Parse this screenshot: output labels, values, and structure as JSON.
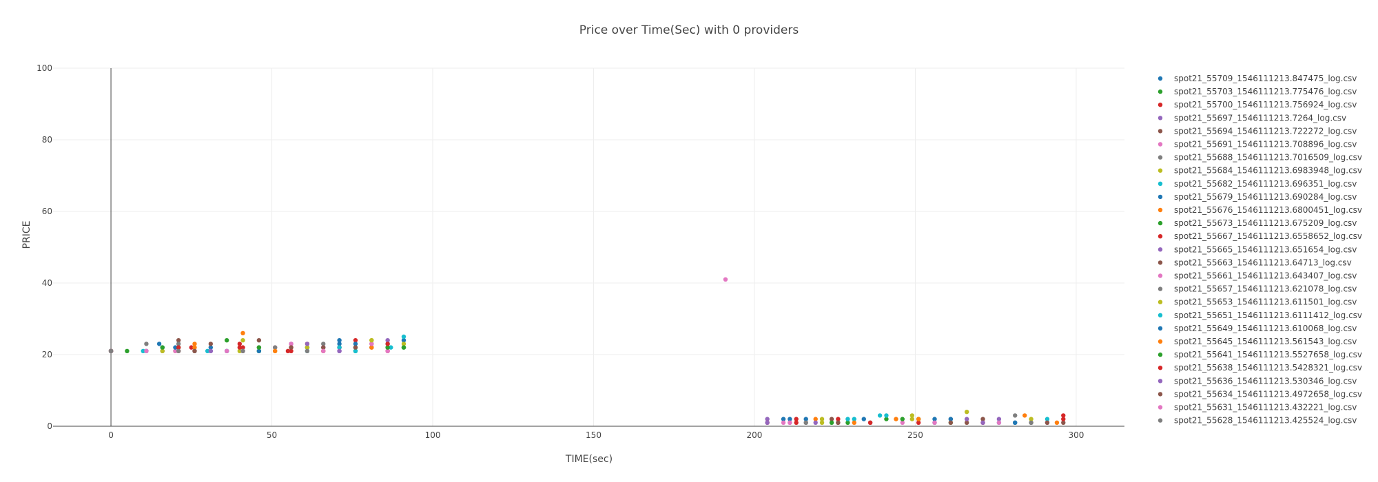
{
  "chart_data": {
    "type": "scatter",
    "title": "Price over Time(Sec) with 0 providers",
    "xlabel": "TIME(sec)",
    "ylabel": "PRICE",
    "xlim": [
      -18,
      315
    ],
    "ylim": [
      0,
      100
    ],
    "xticks": [
      0,
      50,
      100,
      150,
      200,
      250,
      300
    ],
    "yticks": [
      0,
      20,
      40,
      60,
      80,
      100
    ],
    "grid": true,
    "legend_position": "right",
    "series": [
      {
        "name": "spot21_55709_1546111213.847475_log.csv",
        "color": "#1f77b4",
        "points": [
          [
            0,
            21
          ],
          [
            15,
            23
          ],
          [
            36,
            21
          ],
          [
            71,
            24
          ],
          [
            86,
            22
          ],
          [
            91,
            24
          ],
          [
            211,
            2
          ],
          [
            256,
            2
          ],
          [
            281,
            1
          ]
        ]
      },
      {
        "name": "spot21_55703_1546111213.775476_log.csv",
        "color": "#2ca02c",
        "points": [
          [
            0,
            21
          ],
          [
            5,
            21
          ],
          [
            36,
            24
          ],
          [
            46,
            21
          ],
          [
            61,
            22
          ],
          [
            76,
            21
          ],
          [
            91,
            22
          ],
          [
            241,
            2
          ],
          [
            261,
            1
          ]
        ]
      },
      {
        "name": "spot21_55700_1546111213.756924_log.csv",
        "color": "#d62728",
        "points": [
          [
            0,
            21
          ],
          [
            21,
            21
          ],
          [
            41,
            22
          ],
          [
            56,
            21
          ],
          [
            76,
            24
          ],
          [
            86,
            21
          ],
          [
            213,
            2
          ],
          [
            251,
            1
          ],
          [
            296,
            3
          ]
        ]
      },
      {
        "name": "spot21_55697_1546111213.7264_log.csv",
        "color": "#9467bd",
        "points": [
          [
            0,
            21
          ],
          [
            11,
            21
          ],
          [
            31,
            21
          ],
          [
            56,
            23
          ],
          [
            71,
            21
          ],
          [
            86,
            24
          ],
          [
            204,
            2
          ],
          [
            276,
            2
          ]
        ]
      },
      {
        "name": "spot21_55694_1546111213.722272_log.csv",
        "color": "#8c564b",
        "points": [
          [
            0,
            21
          ],
          [
            21,
            24
          ],
          [
            46,
            24
          ],
          [
            61,
            22
          ],
          [
            81,
            22
          ],
          [
            226,
            1
          ],
          [
            266,
            1
          ]
        ]
      },
      {
        "name": "spot21_55691_1546111213.708896_log.csv",
        "color": "#e377c2",
        "points": [
          [
            0,
            21
          ],
          [
            25,
            22
          ],
          [
            51,
            22
          ],
          [
            66,
            21
          ],
          [
            86,
            21
          ],
          [
            191,
            41
          ],
          [
            211,
            1
          ],
          [
            246,
            1
          ]
        ]
      },
      {
        "name": "spot21_55688_1546111213.7016509_log.csv",
        "color": "#7f7f7f",
        "points": [
          [
            0,
            21
          ],
          [
            11,
            23
          ],
          [
            26,
            21
          ],
          [
            41,
            21
          ],
          [
            66,
            23
          ],
          [
            216,
            1
          ],
          [
            261,
            2
          ],
          [
            286,
            1
          ]
        ]
      },
      {
        "name": "spot21_55684_1546111213.6983948_log.csv",
        "color": "#bcbd22",
        "points": [
          [
            0,
            21
          ],
          [
            20,
            21
          ],
          [
            40,
            21
          ],
          [
            51,
            21
          ],
          [
            81,
            24
          ],
          [
            91,
            23
          ],
          [
            221,
            2
          ],
          [
            249,
            3
          ],
          [
            266,
            4
          ]
        ]
      },
      {
        "name": "spot21_55682_1546111213.696351_log.csv",
        "color": "#17becf",
        "points": [
          [
            0,
            21
          ],
          [
            11,
            21
          ],
          [
            30,
            21
          ],
          [
            61,
            21
          ],
          [
            76,
            21
          ],
          [
            91,
            25
          ],
          [
            231,
            2
          ],
          [
            239,
            3
          ],
          [
            291,
            2
          ]
        ]
      },
      {
        "name": "spot21_55679_1546111213.690284_log.csv",
        "color": "#1f77b4",
        "points": [
          [
            0,
            21
          ],
          [
            16,
            22
          ],
          [
            31,
            22
          ],
          [
            71,
            23
          ],
          [
            86,
            23
          ],
          [
            209,
            2
          ],
          [
            234,
            2
          ],
          [
            256,
            1
          ]
        ]
      },
      {
        "name": "spot21_55676_1546111213.6800451_log.csv",
        "color": "#ff7f0e",
        "points": [
          [
            0,
            21
          ],
          [
            26,
            23
          ],
          [
            41,
            26
          ],
          [
            61,
            23
          ],
          [
            81,
            22
          ],
          [
            219,
            2
          ],
          [
            244,
            2
          ],
          [
            284,
            3
          ]
        ]
      },
      {
        "name": "spot21_55673_1546111213.675209_log.csv",
        "color": "#2ca02c",
        "points": [
          [
            0,
            21
          ],
          [
            21,
            22
          ],
          [
            46,
            21
          ],
          [
            76,
            22
          ],
          [
            91,
            22
          ],
          [
            229,
            1
          ],
          [
            251,
            2
          ]
        ]
      },
      {
        "name": "spot21_55667_1546111213.6558652_log.csv",
        "color": "#d62728",
        "points": [
          [
            0,
            21
          ],
          [
            25,
            22
          ],
          [
            40,
            22
          ],
          [
            55,
            21
          ],
          [
            71,
            22
          ],
          [
            204,
            1
          ],
          [
            226,
            2
          ],
          [
            271,
            1
          ]
        ]
      },
      {
        "name": "spot21_55665_1546111213.651654_log.csv",
        "color": "#9467bd",
        "points": [
          [
            0,
            21
          ],
          [
            16,
            21
          ],
          [
            36,
            21
          ],
          [
            66,
            22
          ],
          [
            81,
            23
          ],
          [
            219,
            1
          ],
          [
            266,
            2
          ],
          [
            291,
            1
          ]
        ]
      },
      {
        "name": "spot21_55663_1546111213.64713_log.csv",
        "color": "#8c564b",
        "points": [
          [
            0,
            21
          ],
          [
            31,
            23
          ],
          [
            46,
            22
          ],
          [
            66,
            22
          ],
          [
            86,
            22
          ],
          [
            224,
            2
          ],
          [
            271,
            2
          ],
          [
            296,
            1
          ]
        ]
      },
      {
        "name": "spot21_55661_1546111213.643407_log.csv",
        "color": "#e377c2",
        "points": [
          [
            0,
            21
          ],
          [
            20,
            21
          ],
          [
            41,
            21
          ],
          [
            56,
            23
          ],
          [
            81,
            23
          ],
          [
            209,
            1
          ],
          [
            256,
            1
          ]
        ]
      },
      {
        "name": "spot21_55657_1546111213.621078_log.csv",
        "color": "#7f7f7f",
        "points": [
          [
            0,
            21
          ],
          [
            21,
            23
          ],
          [
            51,
            22
          ],
          [
            71,
            22
          ],
          [
            236,
            1
          ],
          [
            281,
            3
          ]
        ]
      },
      {
        "name": "spot21_55653_1546111213.611501_log.csv",
        "color": "#bcbd22",
        "points": [
          [
            0,
            21
          ],
          [
            16,
            21
          ],
          [
            41,
            24
          ],
          [
            61,
            22
          ],
          [
            81,
            24
          ],
          [
            221,
            1
          ],
          [
            249,
            2
          ],
          [
            286,
            2
          ]
        ]
      },
      {
        "name": "spot21_55651_1546111213.6111412_log.csv",
        "color": "#17becf",
        "points": [
          [
            0,
            21
          ],
          [
            10,
            21
          ],
          [
            36,
            21
          ],
          [
            71,
            22
          ],
          [
            87,
            22
          ],
          [
            229,
            2
          ],
          [
            241,
            3
          ],
          [
            276,
            1
          ]
        ]
      },
      {
        "name": "spot21_55649_1546111213.610068_log.csv",
        "color": "#1f77b4",
        "points": [
          [
            0,
            21
          ],
          [
            20,
            22
          ],
          [
            46,
            21
          ],
          [
            76,
            23
          ],
          [
            216,
            2
          ],
          [
            261,
            2
          ],
          [
            281,
            1
          ]
        ]
      },
      {
        "name": "spot21_55645_1546111213.561543_log.csv",
        "color": "#ff7f0e",
        "points": [
          [
            0,
            21
          ],
          [
            26,
            22
          ],
          [
            51,
            21
          ],
          [
            66,
            21
          ],
          [
            231,
            1
          ],
          [
            251,
            2
          ],
          [
            294,
            1
          ]
        ]
      },
      {
        "name": "spot21_55641_1546111213.5527658_log.csv",
        "color": "#2ca02c",
        "points": [
          [
            0,
            21
          ],
          [
            16,
            22
          ],
          [
            46,
            22
          ],
          [
            86,
            22
          ],
          [
            224,
            1
          ],
          [
            246,
            2
          ]
        ]
      },
      {
        "name": "spot21_55638_1546111213.5428321_log.csv",
        "color": "#d62728",
        "points": [
          [
            0,
            21
          ],
          [
            21,
            22
          ],
          [
            40,
            23
          ],
          [
            56,
            22
          ],
          [
            86,
            23
          ],
          [
            213,
            1
          ],
          [
            236,
            1
          ],
          [
            296,
            2
          ]
        ]
      },
      {
        "name": "spot21_55636_1546111213.530346_log.csv",
        "color": "#9467bd",
        "points": [
          [
            0,
            21
          ],
          [
            31,
            21
          ],
          [
            61,
            23
          ],
          [
            71,
            21
          ],
          [
            204,
            1
          ],
          [
            271,
            1
          ]
        ]
      },
      {
        "name": "spot21_55634_1546111213.4972658_log.csv",
        "color": "#8c564b",
        "points": [
          [
            0,
            21
          ],
          [
            26,
            21
          ],
          [
            56,
            22
          ],
          [
            76,
            22
          ],
          [
            226,
            1
          ],
          [
            261,
            1
          ],
          [
            291,
            1
          ]
        ]
      },
      {
        "name": "spot21_55631_1546111213.432221_log.csv",
        "color": "#e377c2",
        "points": [
          [
            0,
            21
          ],
          [
            11,
            21
          ],
          [
            36,
            21
          ],
          [
            66,
            21
          ],
          [
            211,
            1
          ],
          [
            276,
            1
          ]
        ]
      },
      {
        "name": "spot21_55628_1546111213.425524_log.csv",
        "color": "#7f7f7f",
        "points": [
          [
            0,
            21
          ],
          [
            21,
            21
          ],
          [
            41,
            21
          ],
          [
            61,
            21
          ],
          [
            216,
            1
          ],
          [
            286,
            1
          ]
        ]
      }
    ]
  }
}
